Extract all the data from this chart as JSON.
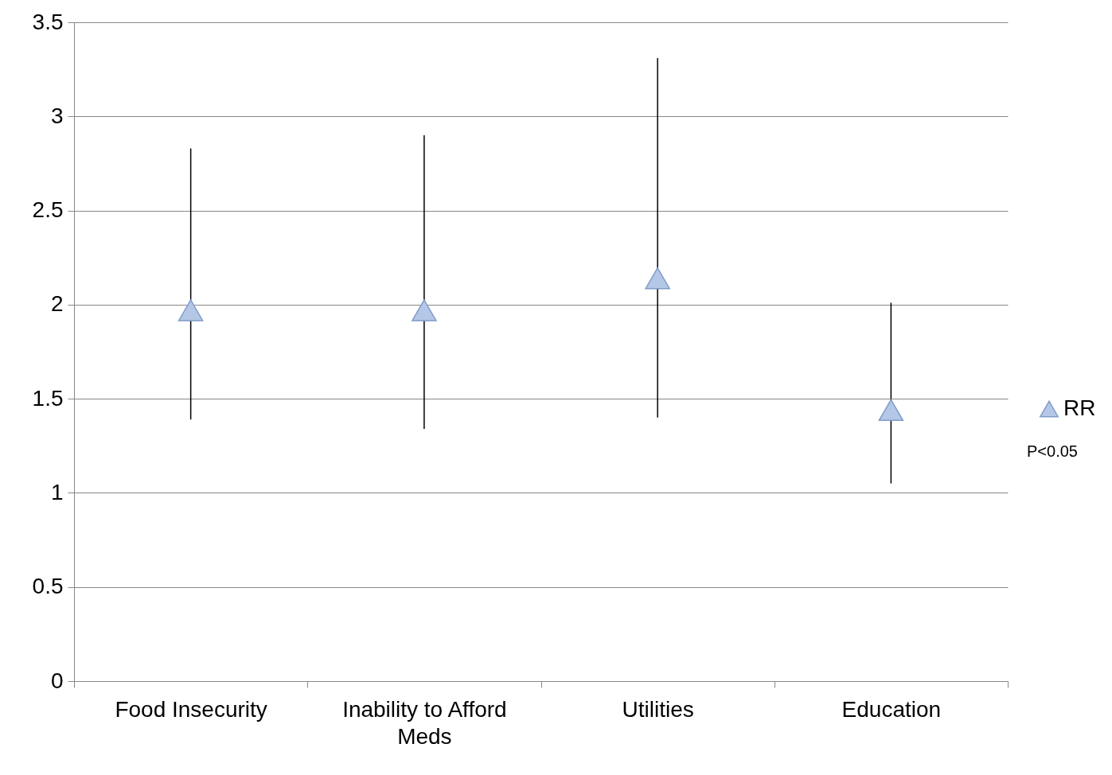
{
  "chart_data": {
    "type": "scatter",
    "categories": [
      "Food Insecurity",
      "Inability to Afford Meds",
      "Utilities",
      "Education"
    ],
    "series": [
      {
        "name": "RR",
        "color": "#b4c7e7",
        "values": [
          1.97,
          1.97,
          2.14,
          1.44
        ],
        "errors": [
          [
            1.39,
            2.83
          ],
          [
            1.34,
            2.9
          ],
          [
            1.4,
            3.31
          ],
          [
            1.05,
            2.01
          ]
        ]
      }
    ],
    "ylim": [
      0,
      3.5
    ],
    "yticks": [
      0,
      0.5,
      1,
      1.5,
      2,
      2.5,
      3,
      3.5
    ],
    "grid": "y",
    "legend": "right",
    "marker": "triangle",
    "annotations": [
      "P<0.05"
    ]
  }
}
